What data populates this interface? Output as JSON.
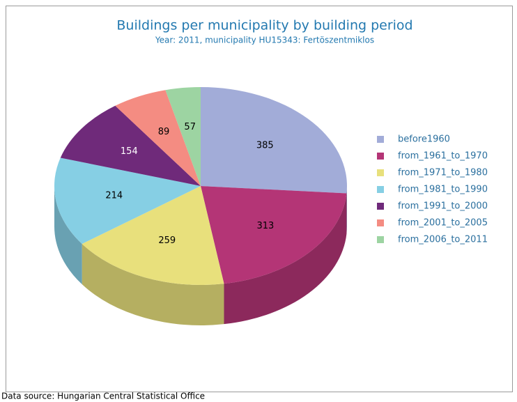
{
  "chart_data": {
    "type": "pie3d",
    "title": "Buildings per municipality by building period",
    "subtitle": "Year: 2011, municipality HU15343: Fertöszentmiklos",
    "source": "Data source: Hungarian Central Statistical Office",
    "categories": [
      "before1960",
      "from_1961_to_1970",
      "from_1971_to_1980",
      "from_1981_to_1990",
      "from_1991_to_2000",
      "from_2001_to_2005",
      "from_2006_to_2011"
    ],
    "values": [
      385,
      313,
      259,
      214,
      154,
      89,
      57
    ],
    "colors": [
      "#a2acd8",
      "#b43576",
      "#e8e07c",
      "#86cfe4",
      "#6f2a7a",
      "#f48c82",
      "#9dd4a2"
    ],
    "legend": "right"
  }
}
